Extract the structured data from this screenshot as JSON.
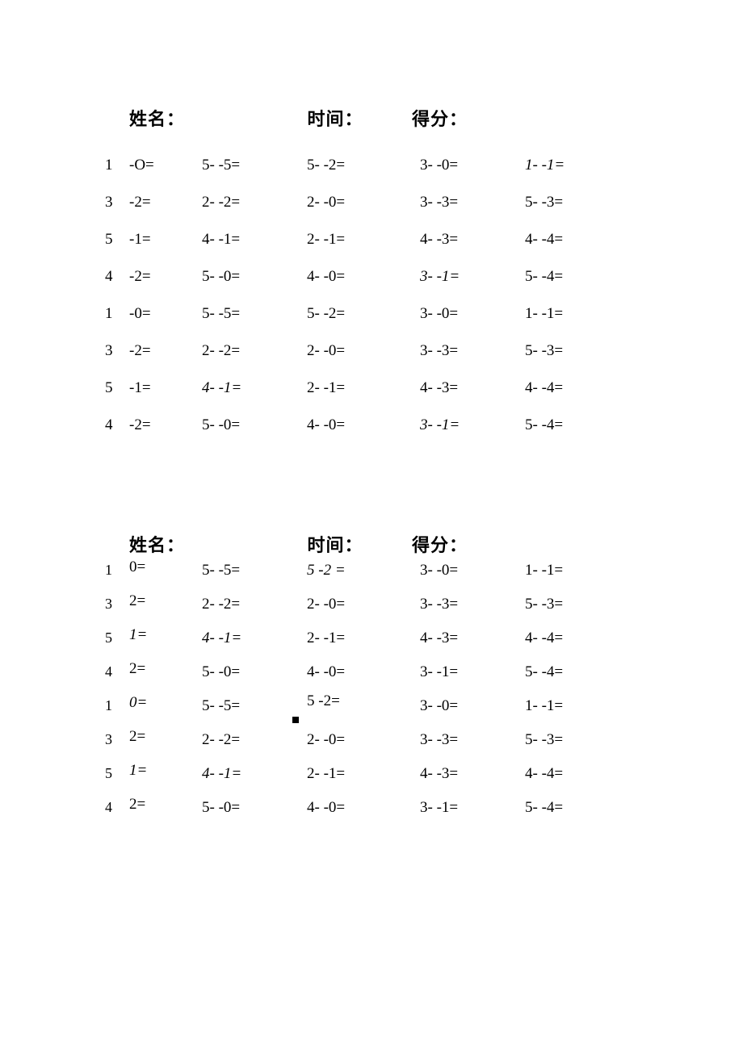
{
  "labels": {
    "name": "姓名：",
    "time": "时间：",
    "score": "得分："
  },
  "worksheet1": {
    "rows": [
      {
        "c1_num": "1",
        "c1_rest": "-O=",
        "c2": "5-  -5=",
        "c3": "5-  -2=",
        "c4": "3-  -0=",
        "c5": "1-  -1=",
        "c5_italic": true
      },
      {
        "c1_num": "3",
        "c1_rest": "-2=",
        "c2": "2-  -2=",
        "c3": "2-  -0=",
        "c4": "3-  -3=",
        "c5": "5-  -3="
      },
      {
        "c1_num": "5",
        "c1_rest": "-1=",
        "c2": "4-  -1=",
        "c3": "2-  -1=",
        "c4": "4-  -3=",
        "c5": "4-  -4="
      },
      {
        "c1_num": "4",
        "c1_rest": "-2=",
        "c2": "5-  -0=",
        "c3": "4-  -0=",
        "c4": "3-  -1=",
        "c4_italic": true,
        "c5": "5-  -4="
      },
      {
        "c1_num": "1",
        "c1_rest": "-0=",
        "c2": "5-  -5=",
        "c3": "5-  -2=",
        "c4": "3-  -0=",
        "c5": "1-  -1="
      },
      {
        "c1_num": "3",
        "c1_rest": "-2=",
        "c2": "2-  -2=",
        "c3": "2-  -0=",
        "c4": "3-  -3=",
        "c5": "5-  -3="
      },
      {
        "c1_num": "5",
        "c1_rest": "-1=",
        "c2": "4-  -1=",
        "c2_italic": true,
        "c3": "2-  -1=",
        "c4": "4-  -3=",
        "c5": "4-  -4="
      },
      {
        "c1_num": "4",
        "c1_rest": "-2=",
        "c2": "5-  -0=",
        "c3": "4-  -0=",
        "c4": "3-  -1=",
        "c4_italic": true,
        "c5": "5-  -4="
      }
    ]
  },
  "worksheet2": {
    "rows": [
      {
        "c1_num": "1",
        "c1_rest": "0=",
        "c2": "5-  -5=",
        "c3": "5  -2 =",
        "c3_italic": true,
        "c4": "3-  -0=",
        "c5": "1-  -1="
      },
      {
        "c1_num": "3",
        "c1_rest": "2=",
        "c2": "2-  -2=",
        "c3": "2-  -0=",
        "c4": "3-  -3=",
        "c5": "5-  -3="
      },
      {
        "c1_num": "5",
        "c1_rest": "1=",
        "c1_italic": true,
        "c2": "4-  -1=",
        "c2_italic": true,
        "c3": "2-  -1=",
        "c4": "4-  -3=",
        "c5": "4-  -4="
      },
      {
        "c1_num": "4",
        "c1_rest": "2=",
        "c2": "5-  -0=",
        "c3": "4-  -0=",
        "c4": "3-  -1=",
        "c5": "5-  -4="
      },
      {
        "c1_num": "1",
        "c1_rest": "0=",
        "c1_italic": true,
        "c2": "5-  -5=",
        "c3": "5  -2=",
        "c3_raised": true,
        "c3_box": true,
        "c4": "3-  -0=",
        "c5": "1-  -1="
      },
      {
        "c1_num": "3",
        "c1_rest": "2=",
        "c2": "2-  -2=",
        "c3": "2-  -0=",
        "c4": "3-  -3=",
        "c5": "5-  -3="
      },
      {
        "c1_num": "5",
        "c1_rest": "1=",
        "c1_italic": true,
        "c2": "4-  -1=",
        "c2_italic": true,
        "c3": "2-  -1=",
        "c4": "4-  -3=",
        "c5": "4-  -4="
      },
      {
        "c1_num": "4",
        "c1_rest": "2=",
        "c2": "5-  -0=",
        "c3": "4-  -0=",
        "c4": "3-  -1=",
        "c5": "5-  -4="
      }
    ]
  }
}
